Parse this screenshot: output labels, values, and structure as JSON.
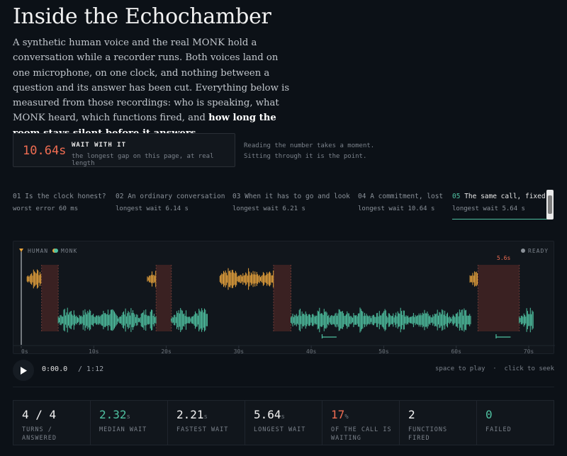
{
  "header": {
    "title": "Inside the Echochamber",
    "intro_text": "A synthetic human voice and the real MONK hold a conversation while a recorder runs. Both voices land on one microphone, on one clock, and nothing between a question and its answer has been cut. Everything below is measured from those recordings: who is speaking, what MONK heard, which functions fired, and ",
    "intro_bold": "how long the room stays silent before it answers",
    "intro_end": "."
  },
  "wait_callout": {
    "number": "10.64s",
    "heading": "WAIT WITH IT",
    "sub": "the longest gap on this page, at real length",
    "note_line1": "Reading the number takes a moment.",
    "note_line2": "Sitting through it is the point."
  },
  "tabs": [
    {
      "num": "01",
      "title": "Is the clock honest?",
      "sub": "worst error 60 ms"
    },
    {
      "num": "02",
      "title": "An ordinary conversation",
      "sub": "longest wait 6.14 s"
    },
    {
      "num": "03",
      "title": "When it has to go and look",
      "sub": "longest wait 6.21 s"
    },
    {
      "num": "04",
      "title": "A commitment, lost",
      "sub": "longest wait 10.64 s"
    },
    {
      "num": "05",
      "title": "The same call, fixed",
      "sub": "longest wait 5.64 s",
      "active": true
    }
  ],
  "waveform": {
    "legend_human": "HUMAN",
    "legend_monk": "MONK",
    "status": "READY",
    "gap_label": "5.6s",
    "colors": {
      "human": "#e8a33c",
      "monk": "#4fc1a1",
      "gap": "#3a2122",
      "status_dot": "#8a9098"
    },
    "axis_ticks": [
      "0s",
      "10s",
      "20s",
      "30s",
      "40s",
      "50s",
      "60s",
      "70s"
    ],
    "duration_s": 72,
    "segments": [
      {
        "speaker": "human",
        "start": 0.8,
        "end": 2.8
      },
      {
        "speaker": "gap",
        "start": 2.8,
        "end": 5.1
      },
      {
        "speaker": "monk",
        "start": 5.1,
        "end": 18.6
      },
      {
        "speaker": "human",
        "start": 17.4,
        "end": 18.6
      },
      {
        "speaker": "gap",
        "start": 18.6,
        "end": 20.7
      },
      {
        "speaker": "monk",
        "start": 20.7,
        "end": 25.7
      },
      {
        "speaker": "human",
        "start": 27.4,
        "end": 34.8
      },
      {
        "speaker": "gap",
        "start": 34.8,
        "end": 37.2
      },
      {
        "speaker": "monk",
        "start": 37.2,
        "end": 62.0
      },
      {
        "speaker": "human",
        "start": 61.9,
        "end": 63.0
      },
      {
        "speaker": "gap",
        "start": 63.0,
        "end": 68.7
      },
      {
        "speaker": "monk",
        "start": 68.7,
        "end": 70.7
      }
    ],
    "function_markers": [
      {
        "start": 41.5,
        "end": 43.5
      },
      {
        "start": 65.5,
        "end": 67.5
      }
    ]
  },
  "player": {
    "time_now": "0:00.0",
    "time_total": "/ 1:12",
    "hint": "space to play  ·  click to seek"
  },
  "stats": [
    {
      "value": "4 / 4",
      "unit": "",
      "label_line1": "TURNS /",
      "label_line2": "ANSWERED",
      "color": "#f2f2f2"
    },
    {
      "value": "2.32",
      "unit": "s",
      "label_line1": "MEDIAN WAIT",
      "label_line2": "",
      "color": "#4fc1a1"
    },
    {
      "value": "2.21",
      "unit": "s",
      "label_line1": "FASTEST WAIT",
      "label_line2": "",
      "color": "#f2f2f2"
    },
    {
      "value": "5.64",
      "unit": "s",
      "label_line1": "LONGEST WAIT",
      "label_line2": "",
      "color": "#f2f2f2"
    },
    {
      "value": "17",
      "unit": "%",
      "label_line1": "OF THE CALL IS",
      "label_line2": "WAITING",
      "color": "#f06d52"
    },
    {
      "value": "2",
      "unit": "",
      "label_line1": "FUNCTIONS",
      "label_line2": "FIRED",
      "color": "#f2f2f2"
    },
    {
      "value": "0",
      "unit": "",
      "label_line1": "FAILED",
      "label_line2": "",
      "color": "#4fc1a1"
    }
  ]
}
